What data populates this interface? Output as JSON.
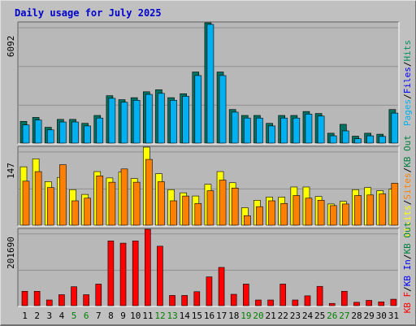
{
  "chart_data": {
    "type": "bar",
    "title": "Daily usage for July 2025",
    "categories": [
      "1",
      "2",
      "3",
      "4",
      "5",
      "6",
      "7",
      "8",
      "9",
      "10",
      "11",
      "12",
      "13",
      "14",
      "15",
      "16",
      "17",
      "18",
      "19",
      "20",
      "21",
      "22",
      "23",
      "24",
      "25",
      "26",
      "27",
      "28",
      "29",
      "30",
      "31"
    ],
    "weekend_days": [
      "5",
      "6",
      "12",
      "13",
      "19",
      "20",
      "26",
      "27"
    ],
    "colors": {
      "title": "#0000cc",
      "background": "#c0c0c0",
      "plot_background": "#b8b8b8",
      "pages": "#009090",
      "files": "#00b0f0",
      "hits": "#009060",
      "visits": "#ffff00",
      "sites": "#ff8000",
      "kb_in": "#0000ff",
      "kb_out": "#008040",
      "kb_f": "#ff0000",
      "weekday_label": "#000000",
      "weekend_label": "#008000"
    },
    "panels": [
      {
        "id": "top",
        "max_label": "6092",
        "legend": [
          {
            "text": "Pages",
            "color": "#00b0f0"
          },
          {
            "text": "/",
            "color": "#000000"
          },
          {
            "text": "Files",
            "color": "#0000ff"
          },
          {
            "text": "/",
            "color": "#000000"
          },
          {
            "text": "Hits",
            "color": "#009060"
          }
        ],
        "ylim": [
          0,
          6092
        ],
        "series": [
          {
            "name": "Pages",
            "values": [
              1100,
              1300,
              800,
              1200,
              1200,
              1000,
              1400,
              2400,
              2200,
              2300,
              2600,
              2700,
              2300,
              2500,
              3600,
              6092,
              3600,
              1700,
              1400,
              1400,
              1000,
              1400,
              1400,
              1600,
              1500,
              500,
              950,
              350,
              500,
              450,
              1700
            ]
          },
          {
            "name": "Files",
            "values": [
              1000,
              1250,
              750,
              1150,
              1150,
              950,
              1350,
              2350,
              2150,
              2250,
              2550,
              2600,
              2250,
              2450,
              3500,
              6092,
              3500,
              1650,
              1350,
              1350,
              950,
              1350,
              1350,
              1550,
              1450,
              450,
              700,
              300,
              450,
              420,
              1600
            ]
          }
        ]
      },
      {
        "id": "middle",
        "max_label": "147",
        "legend": [
          {
            "text": "Visits",
            "color": "#ffff00"
          },
          {
            "text": "/",
            "color": "#000000"
          },
          {
            "text": "Sites",
            "color": "#ff8000"
          },
          {
            "text": "/",
            "color": "#000000"
          },
          {
            "text": "KB Out",
            "color": "#008040"
          }
        ],
        "ylim": [
          0,
          147
        ],
        "series": [
          {
            "name": "Visits",
            "values": [
              110,
              125,
              82,
              90,
              67,
              58,
              101,
              89,
              100,
              88,
              147,
              97,
              67,
              61,
              55,
              77,
              101,
              80,
              33,
              47,
              53,
              53,
              72,
              72,
              54,
              40,
              45,
              67,
              71,
              65,
              68
            ]
          },
          {
            "name": "Sites",
            "values": [
              86,
              104,
              74,
              117,
              49,
              54,
              96,
              84,
              109,
              84,
              127,
              85,
              49,
              58,
              44,
              68,
              88,
              73,
              21,
              38,
              49,
              44,
              59,
              54,
              50,
              40,
              43,
              59,
              60,
              62,
              82
            ]
          }
        ]
      },
      {
        "id": "bottom",
        "max_label": "201690",
        "legend": [
          {
            "text": "KB F",
            "color": "#ff0000"
          },
          {
            "text": "/",
            "color": "#000000"
          },
          {
            "text": "KB In",
            "color": "#0000ff"
          },
          {
            "text": "/",
            "color": "#000000"
          },
          {
            "text": "KB Out",
            "color": "#008040"
          }
        ],
        "ylim": [
          0,
          201690
        ],
        "series": [
          {
            "name": "KB F",
            "values": [
              38000,
              38000,
              15000,
              29000,
              50000,
              29000,
              57000,
              171000,
              165000,
              171000,
              201690,
              157000,
              27000,
              27000,
              37000,
              76000,
              101000,
              30000,
              57000,
              15000,
              15000,
              57000,
              15000,
              26000,
              51000,
              6000,
              38000,
              9000,
              14000,
              10000,
              17000
            ]
          }
        ]
      }
    ]
  }
}
